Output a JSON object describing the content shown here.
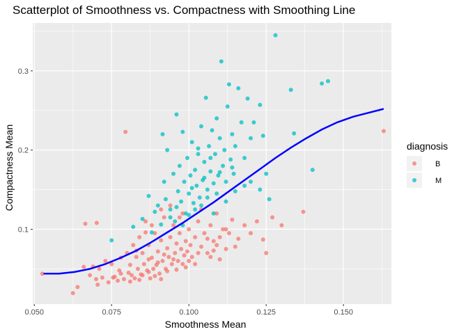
{
  "chart_data": {
    "type": "scatter",
    "title": "Scatterplot of Smoothness vs. Compactness with Smoothing Line",
    "xlabel": "Smoothness Mean",
    "ylabel": "Compactness Mean",
    "xlim": [
      0.0495,
      0.1655
    ],
    "ylim": [
      0.0055,
      0.3605
    ],
    "x_ticks": [
      0.05,
      0.075,
      0.1,
      0.125,
      0.15
    ],
    "x_tick_labels": [
      "0.050",
      "0.075",
      "0.100",
      "0.125",
      "0.150"
    ],
    "y_ticks": [
      0.1,
      0.2,
      0.3
    ],
    "y_tick_labels": [
      "0.1",
      "0.2",
      "0.3"
    ],
    "grid": true,
    "legend": {
      "title": "diagnosis",
      "position": "right",
      "entries": [
        {
          "label": "B",
          "color": "#F8766D"
        },
        {
          "label": "M",
          "color": "#00BFC4"
        }
      ]
    },
    "series": [
      {
        "name": "B",
        "color": "#F8766D",
        "points": [
          [
            0.0526,
            0.0438
          ],
          [
            0.0625,
            0.0193
          ],
          [
            0.064,
            0.027
          ],
          [
            0.066,
            0.0525
          ],
          [
            0.0665,
            0.107
          ],
          [
            0.068,
            0.042
          ],
          [
            0.069,
            0.053
          ],
          [
            0.07,
            0.037
          ],
          [
            0.0702,
            0.108
          ],
          [
            0.0705,
            0.03
          ],
          [
            0.071,
            0.05
          ],
          [
            0.072,
            0.039
          ],
          [
            0.073,
            0.06
          ],
          [
            0.074,
            0.033
          ],
          [
            0.075,
            0.056
          ],
          [
            0.0755,
            0.039
          ],
          [
            0.076,
            0.04
          ],
          [
            0.077,
            0.035
          ],
          [
            0.0775,
            0.048
          ],
          [
            0.078,
            0.064
          ],
          [
            0.079,
            0.037
          ],
          [
            0.0795,
            0.223
          ],
          [
            0.08,
            0.07
          ],
          [
            0.0805,
            0.045
          ],
          [
            0.081,
            0.055
          ],
          [
            0.0815,
            0.042
          ],
          [
            0.082,
            0.08
          ],
          [
            0.0825,
            0.038
          ],
          [
            0.083,
            0.065
          ],
          [
            0.0835,
            0.05
          ],
          [
            0.084,
            0.09
          ],
          [
            0.0845,
            0.043
          ],
          [
            0.085,
            0.07
          ],
          [
            0.0855,
            0.056
          ],
          [
            0.086,
            0.11
          ],
          [
            0.0865,
            0.048
          ],
          [
            0.087,
            0.08
          ],
          [
            0.0875,
            0.038
          ],
          [
            0.088,
            0.064
          ],
          [
            0.0885,
            0.05
          ],
          [
            0.089,
            0.095
          ],
          [
            0.0895,
            0.055
          ],
          [
            0.09,
            0.072
          ],
          [
            0.0905,
            0.044
          ],
          [
            0.091,
            0.086
          ],
          [
            0.0915,
            0.06
          ],
          [
            0.092,
            0.115
          ],
          [
            0.0925,
            0.05
          ],
          [
            0.093,
            0.076
          ],
          [
            0.0935,
            0.065
          ],
          [
            0.094,
            0.09
          ],
          [
            0.0945,
            0.056
          ],
          [
            0.095,
            0.105
          ],
          [
            0.0955,
            0.07
          ],
          [
            0.096,
            0.082
          ],
          [
            0.0965,
            0.06
          ],
          [
            0.097,
            0.095
          ],
          [
            0.0975,
            0.075
          ],
          [
            0.098,
            0.12
          ],
          [
            0.0985,
            0.067
          ],
          [
            0.099,
            0.085
          ],
          [
            0.0995,
            0.072
          ],
          [
            0.1,
            0.1
          ],
          [
            0.1005,
            0.08
          ],
          [
            0.101,
            0.065
          ],
          [
            0.102,
            0.09
          ],
          [
            0.103,
            0.11
          ],
          [
            0.104,
            0.078
          ],
          [
            0.105,
            0.095
          ],
          [
            0.106,
            0.07
          ],
          [
            0.107,
            0.105
          ],
          [
            0.108,
            0.085
          ],
          [
            0.109,
            0.12
          ],
          [
            0.11,
            0.09
          ],
          [
            0.111,
            0.1
          ],
          [
            0.112,
            0.075
          ],
          [
            0.114,
            0.112
          ],
          [
            0.116,
            0.088
          ],
          [
            0.118,
            0.105
          ],
          [
            0.12,
            0.095
          ],
          [
            0.122,
            0.11
          ],
          [
            0.124,
            0.087
          ],
          [
            0.127,
            0.115
          ],
          [
            0.13,
            0.105
          ],
          [
            0.137,
            0.122
          ],
          [
            0.163,
            0.224
          ],
          [
            0.085,
            0.042
          ],
          [
            0.087,
            0.062
          ],
          [
            0.09,
            0.058
          ],
          [
            0.092,
            0.068
          ],
          [
            0.095,
            0.062
          ],
          [
            0.098,
            0.056
          ],
          [
            0.1,
            0.06
          ],
          [
            0.103,
            0.07
          ],
          [
            0.106,
            0.088
          ],
          [
            0.108,
            0.073
          ],
          [
            0.11,
            0.062
          ],
          [
            0.113,
            0.095
          ],
          [
            0.115,
            0.078
          ],
          [
            0.125,
            0.07
          ],
          [
            0.078,
            0.044
          ],
          [
            0.081,
            0.034
          ],
          [
            0.084,
            0.036
          ],
          [
            0.087,
            0.046
          ],
          [
            0.089,
            0.041
          ],
          [
            0.091,
            0.037
          ],
          [
            0.093,
            0.047
          ],
          [
            0.096,
            0.049
          ],
          [
            0.099,
            0.052
          ],
          [
            0.102,
            0.056
          ],
          [
            0.086,
            0.096
          ],
          [
            0.088,
            0.105
          ],
          [
            0.091,
            0.125
          ],
          [
            0.094,
            0.13
          ],
          [
            0.097,
            0.115
          ],
          [
            0.104,
            0.125
          ],
          [
            0.107,
            0.065
          ],
          [
            0.109,
            0.08
          ],
          [
            0.112,
            0.1
          ],
          [
            0.083,
            0.073
          ]
        ]
      },
      {
        "name": "M",
        "color": "#00BFC4",
        "points": [
          [
            0.075,
            0.086
          ],
          [
            0.082,
            0.103
          ],
          [
            0.085,
            0.113
          ],
          [
            0.087,
            0.142
          ],
          [
            0.088,
            0.096
          ],
          [
            0.089,
            0.122
          ],
          [
            0.09,
            0.13
          ],
          [
            0.091,
            0.106
          ],
          [
            0.0915,
            0.22
          ],
          [
            0.092,
            0.16
          ],
          [
            0.0925,
            0.138
          ],
          [
            0.093,
            0.2
          ],
          [
            0.094,
            0.125
          ],
          [
            0.095,
            0.17
          ],
          [
            0.0955,
            0.11
          ],
          [
            0.096,
            0.245
          ],
          [
            0.0965,
            0.148
          ],
          [
            0.097,
            0.18
          ],
          [
            0.0975,
            0.135
          ],
          [
            0.098,
            0.223
          ],
          [
            0.0985,
            0.16
          ],
          [
            0.099,
            0.12
          ],
          [
            0.0995,
            0.19
          ],
          [
            0.1,
            0.145
          ],
          [
            0.1005,
            0.168
          ],
          [
            0.101,
            0.21
          ],
          [
            0.1015,
            0.133
          ],
          [
            0.102,
            0.175
          ],
          [
            0.1025,
            0.155
          ],
          [
            0.103,
            0.195
          ],
          [
            0.1035,
            0.14
          ],
          [
            0.104,
            0.23
          ],
          [
            0.1045,
            0.162
          ],
          [
            0.105,
            0.185
          ],
          [
            0.1055,
            0.266
          ],
          [
            0.106,
            0.15
          ],
          [
            0.1065,
            0.205
          ],
          [
            0.107,
            0.173
          ],
          [
            0.1075,
            0.225
          ],
          [
            0.108,
            0.158
          ],
          [
            0.1085,
            0.195
          ],
          [
            0.109,
            0.24
          ],
          [
            0.1095,
            0.168
          ],
          [
            0.11,
            0.215
          ],
          [
            0.1105,
            0.312
          ],
          [
            0.111,
            0.18
          ],
          [
            0.1115,
            0.2
          ],
          [
            0.112,
            0.16
          ],
          [
            0.1125,
            0.255
          ],
          [
            0.113,
            0.283
          ],
          [
            0.1135,
            0.188
          ],
          [
            0.114,
            0.22
          ],
          [
            0.1145,
            0.17
          ],
          [
            0.115,
            0.205
          ],
          [
            0.116,
            0.278
          ],
          [
            0.117,
            0.235
          ],
          [
            0.118,
            0.19
          ],
          [
            0.119,
            0.265
          ],
          [
            0.12,
            0.215
          ],
          [
            0.121,
            0.235
          ],
          [
            0.123,
            0.257
          ],
          [
            0.124,
            0.218
          ],
          [
            0.125,
            0.17
          ],
          [
            0.126,
            0.138
          ],
          [
            0.128,
            0.345
          ],
          [
            0.133,
            0.276
          ],
          [
            0.134,
            0.221
          ],
          [
            0.14,
            0.175
          ],
          [
            0.143,
            0.284
          ],
          [
            0.145,
            0.287
          ],
          [
            0.096,
            0.128
          ],
          [
            0.1,
            0.118
          ],
          [
            0.104,
            0.13
          ],
          [
            0.106,
            0.14
          ],
          [
            0.109,
            0.145
          ],
          [
            0.112,
            0.135
          ],
          [
            0.115,
            0.148
          ],
          [
            0.118,
            0.155
          ],
          [
            0.108,
            0.12
          ],
          [
            0.102,
            0.125
          ],
          [
            0.098,
            0.105
          ],
          [
            0.094,
            0.115
          ],
          [
            0.101,
            0.152
          ],
          [
            0.105,
            0.165
          ],
          [
            0.11,
            0.172
          ],
          [
            0.114,
            0.178
          ],
          [
            0.12,
            0.16
          ],
          [
            0.107,
            0.19
          ],
          [
            0.103,
            0.202
          ],
          [
            0.123,
            0.15
          ]
        ]
      }
    ],
    "smoothing_line": {
      "color": "#0000FF",
      "points": [
        [
          0.053,
          0.044
        ],
        [
          0.058,
          0.044
        ],
        [
          0.063,
          0.046
        ],
        [
          0.068,
          0.05
        ],
        [
          0.073,
          0.056
        ],
        [
          0.078,
          0.064
        ],
        [
          0.083,
          0.073
        ],
        [
          0.088,
          0.084
        ],
        [
          0.093,
          0.096
        ],
        [
          0.098,
          0.108
        ],
        [
          0.103,
          0.121
        ],
        [
          0.108,
          0.134
        ],
        [
          0.113,
          0.148
        ],
        [
          0.118,
          0.162
        ],
        [
          0.123,
          0.176
        ],
        [
          0.128,
          0.19
        ],
        [
          0.133,
          0.203
        ],
        [
          0.138,
          0.215
        ],
        [
          0.143,
          0.226
        ],
        [
          0.148,
          0.235
        ],
        [
          0.153,
          0.242
        ],
        [
          0.158,
          0.247
        ],
        [
          0.163,
          0.252
        ]
      ]
    }
  }
}
